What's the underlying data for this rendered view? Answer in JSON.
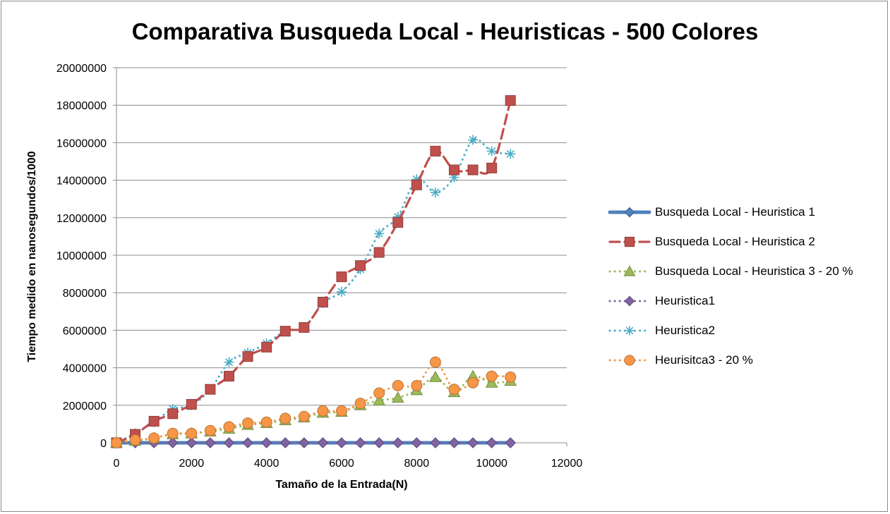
{
  "chart_data": {
    "type": "line",
    "title": "Comparativa Busqueda Local - Heuristicas - 500 Colores",
    "xlabel": "Tamaño de la Entrada(N)",
    "ylabel": "Tiempo medido en nanosegundos/1000",
    "xlim": [
      0,
      12000
    ],
    "ylim": [
      0,
      20000000
    ],
    "x_ticks": [
      "0",
      "2000",
      "4000",
      "6000",
      "8000",
      "10000",
      "12000"
    ],
    "y_ticks": [
      "0",
      "2000000",
      "4000000",
      "6000000",
      "8000000",
      "10000000",
      "12000000",
      "14000000",
      "16000000",
      "18000000",
      "20000000"
    ],
    "grid": "horizontal",
    "legend_position": "right",
    "x": [
      0,
      500,
      1000,
      1500,
      2000,
      2500,
      3000,
      3500,
      4000,
      4500,
      5000,
      5500,
      6000,
      6500,
      7000,
      7500,
      8000,
      8500,
      9000,
      9500,
      10000,
      10500
    ],
    "series": [
      {
        "name": "Busqueda Local - Heuristica 1",
        "color": "#4f81bd",
        "line_style": "solid",
        "marker": "diamond",
        "values": [
          0,
          0,
          0,
          0,
          0,
          0,
          0,
          0,
          0,
          0,
          0,
          0,
          0,
          0,
          0,
          0,
          0,
          0,
          0,
          0,
          0,
          0
        ]
      },
      {
        "name": "Busqueda Local - Heuristica 2",
        "color": "#c0504d",
        "line_style": "dashed",
        "marker": "square",
        "values": [
          0,
          450000,
          1150000,
          1550000,
          2050000,
          2850000,
          3550000,
          4600000,
          5100000,
          5950000,
          6150000,
          7500000,
          8850000,
          9450000,
          10150000,
          11750000,
          13750000,
          15550000,
          14550000,
          14550000,
          14650000,
          18250000
        ]
      },
      {
        "name": "Busqueda Local - Heuristica 3 - 20 %",
        "color": "#9bbb59",
        "line_style": "dotted",
        "marker": "triangle",
        "values": [
          0,
          100000,
          250000,
          450000,
          500000,
          600000,
          750000,
          950000,
          1050000,
          1200000,
          1350000,
          1600000,
          1650000,
          2000000,
          2250000,
          2400000,
          2800000,
          3500000,
          2700000,
          3550000,
          3200000,
          3300000
        ]
      },
      {
        "name": "Heuristica1",
        "color": "#8064a2",
        "line_style": "dotted",
        "marker": "diamond",
        "values": [
          0,
          0,
          0,
          0,
          0,
          0,
          0,
          0,
          0,
          0,
          0,
          0,
          0,
          0,
          0,
          0,
          0,
          0,
          0,
          0,
          0,
          0
        ]
      },
      {
        "name": "Heuristica2",
        "color": "#4bacc6",
        "line_style": "dotted",
        "marker": "star",
        "values": [
          0,
          500000,
          1100000,
          1800000,
          2000000,
          2850000,
          4300000,
          4800000,
          5300000,
          5950000,
          6150000,
          7450000,
          8050000,
          9250000,
          11150000,
          12050000,
          14050000,
          13350000,
          14150000,
          16150000,
          15550000,
          15400000
        ]
      },
      {
        "name": "Heurisitca3 - 20 %",
        "color": "#f79646",
        "line_style": "dotted",
        "marker": "circle",
        "values": [
          0,
          150000,
          250000,
          500000,
          500000,
          650000,
          850000,
          1050000,
          1100000,
          1300000,
          1400000,
          1700000,
          1700000,
          2100000,
          2650000,
          3050000,
          3050000,
          4300000,
          2850000,
          3200000,
          3550000,
          3500000
        ]
      }
    ]
  }
}
